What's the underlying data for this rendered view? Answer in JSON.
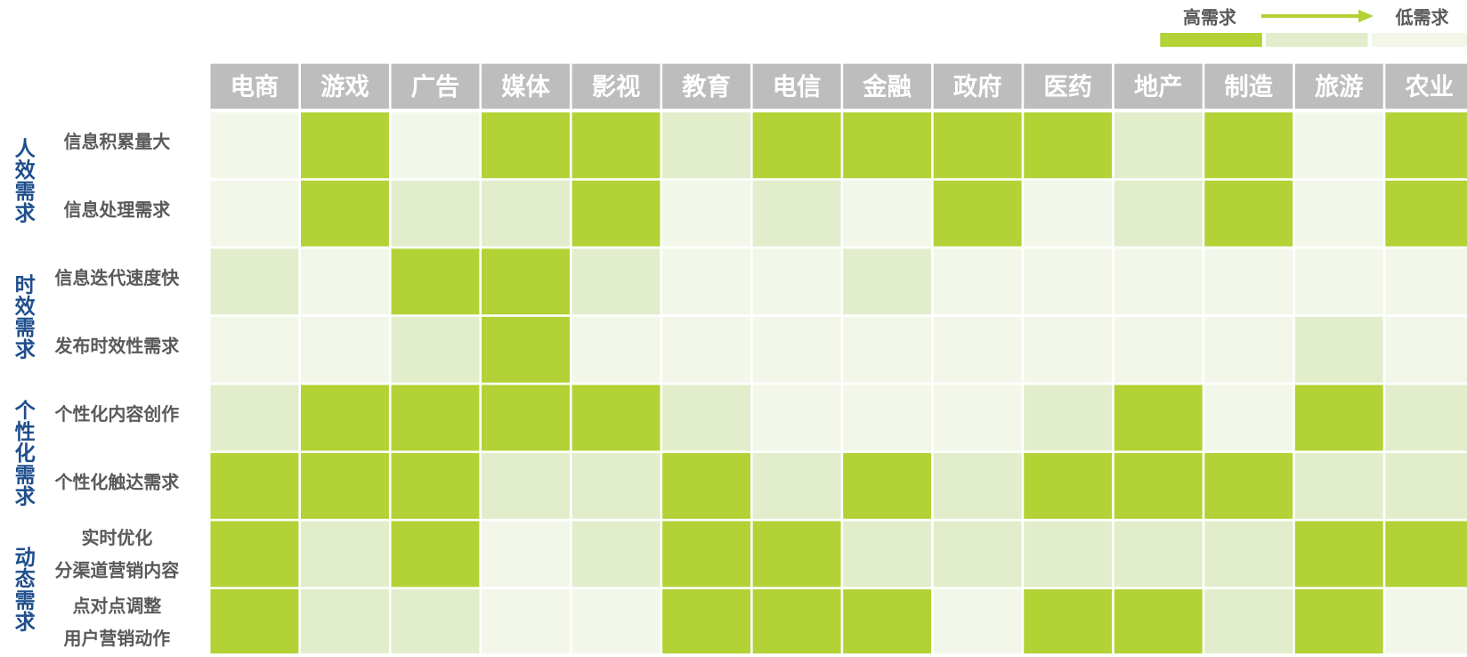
{
  "chart_data": {
    "type": "heatmap",
    "categories": [
      "电商",
      "游戏",
      "广告",
      "媒体",
      "影视",
      "教育",
      "电信",
      "金融",
      "政府",
      "医药",
      "地产",
      "制造",
      "旅游",
      "农业"
    ],
    "groups": [
      {
        "name": "人效需求",
        "rows": [
          {
            "label": [
              "信息积累量大"
            ],
            "values": [
              2,
              0,
              2,
              0,
              0,
              1,
              0,
              0,
              0,
              0,
              1,
              0,
              2,
              0
            ]
          },
          {
            "label": [
              "信息处理需求"
            ],
            "values": [
              2,
              0,
              1,
              1,
              0,
              2,
              1,
              2,
              0,
              2,
              1,
              0,
              2,
              0
            ]
          }
        ]
      },
      {
        "name": "时效需求",
        "rows": [
          {
            "label": [
              "信息迭代速度快"
            ],
            "values": [
              1,
              2,
              0,
              0,
              1,
              2,
              2,
              1,
              2,
              2,
              2,
              2,
              2,
              2
            ]
          },
          {
            "label": [
              "发布时效性需求"
            ],
            "values": [
              2,
              2,
              1,
              0,
              2,
              2,
              2,
              2,
              2,
              2,
              2,
              2,
              1,
              2
            ]
          }
        ]
      },
      {
        "name": "个性化需求",
        "rows": [
          {
            "label": [
              "个性化内容创作"
            ],
            "values": [
              1,
              0,
              0,
              0,
              0,
              1,
              2,
              2,
              2,
              1,
              0,
              2,
              0,
              1
            ]
          },
          {
            "label": [
              "个性化触达需求"
            ],
            "values": [
              0,
              0,
              0,
              1,
              1,
              0,
              1,
              0,
              1,
              0,
              0,
              0,
              1,
              1
            ]
          }
        ]
      },
      {
        "name": "动态需求",
        "rows": [
          {
            "label": [
              "实时优化",
              "分渠道营销内容"
            ],
            "values": [
              0,
              1,
              0,
              2,
              1,
              0,
              0,
              1,
              1,
              1,
              1,
              1,
              0,
              0
            ]
          },
          {
            "label": [
              "点对点调整",
              "用户营销动作"
            ],
            "values": [
              0,
              1,
              1,
              2,
              2,
              0,
              0,
              0,
              2,
              0,
              0,
              1,
              0,
              2
            ]
          }
        ]
      }
    ],
    "colors": [
      "#b2d235",
      "#e2edcc",
      "#f3f7ea"
    ],
    "legend": {
      "high": "高需求",
      "low": "低需求"
    }
  }
}
